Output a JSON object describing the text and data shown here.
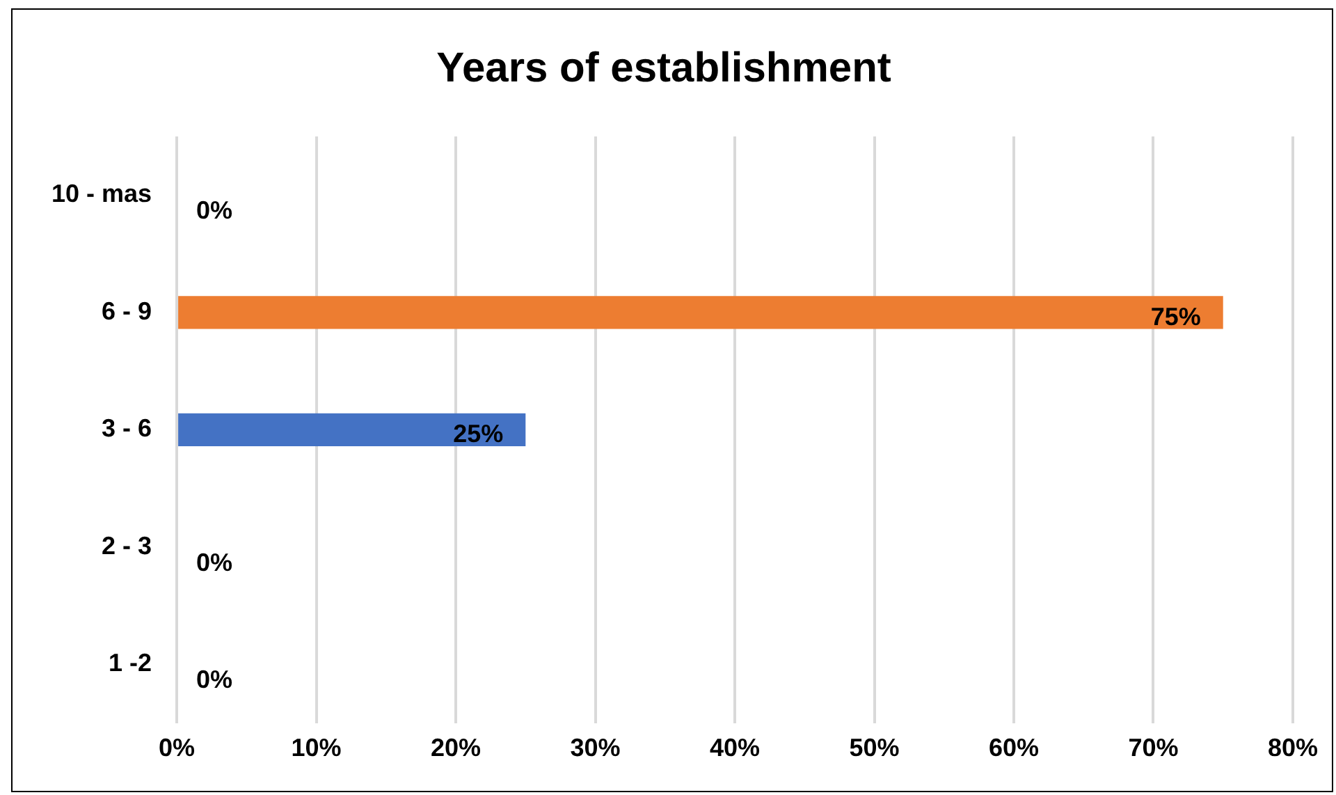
{
  "chart_data": {
    "type": "bar",
    "orientation": "horizontal",
    "title": "Years of establishment",
    "categories": [
      "10 - mas",
      "6 - 9",
      "3 - 6",
      "2 - 3",
      "1 -2"
    ],
    "values": [
      0,
      75,
      25,
      0,
      0
    ],
    "colors": [
      "#4472c4",
      "#ed7d31",
      "#4472c4",
      "#4472c4",
      "#4472c4"
    ],
    "value_labels": [
      "0%",
      "75%",
      "25%",
      "0%",
      "0%"
    ],
    "xlim": [
      0,
      80
    ],
    "xticks": [
      {
        "value": 0,
        "label": "0%"
      },
      {
        "value": 10,
        "label": "10%"
      },
      {
        "value": 20,
        "label": "20%"
      },
      {
        "value": 30,
        "label": "30%"
      },
      {
        "value": 40,
        "label": "40%"
      },
      {
        "value": 50,
        "label": "50%"
      },
      {
        "value": 60,
        "label": "60%"
      },
      {
        "value": 70,
        "label": "70%"
      },
      {
        "value": 80,
        "label": "80%"
      }
    ],
    "grid": "x",
    "legend": false
  }
}
